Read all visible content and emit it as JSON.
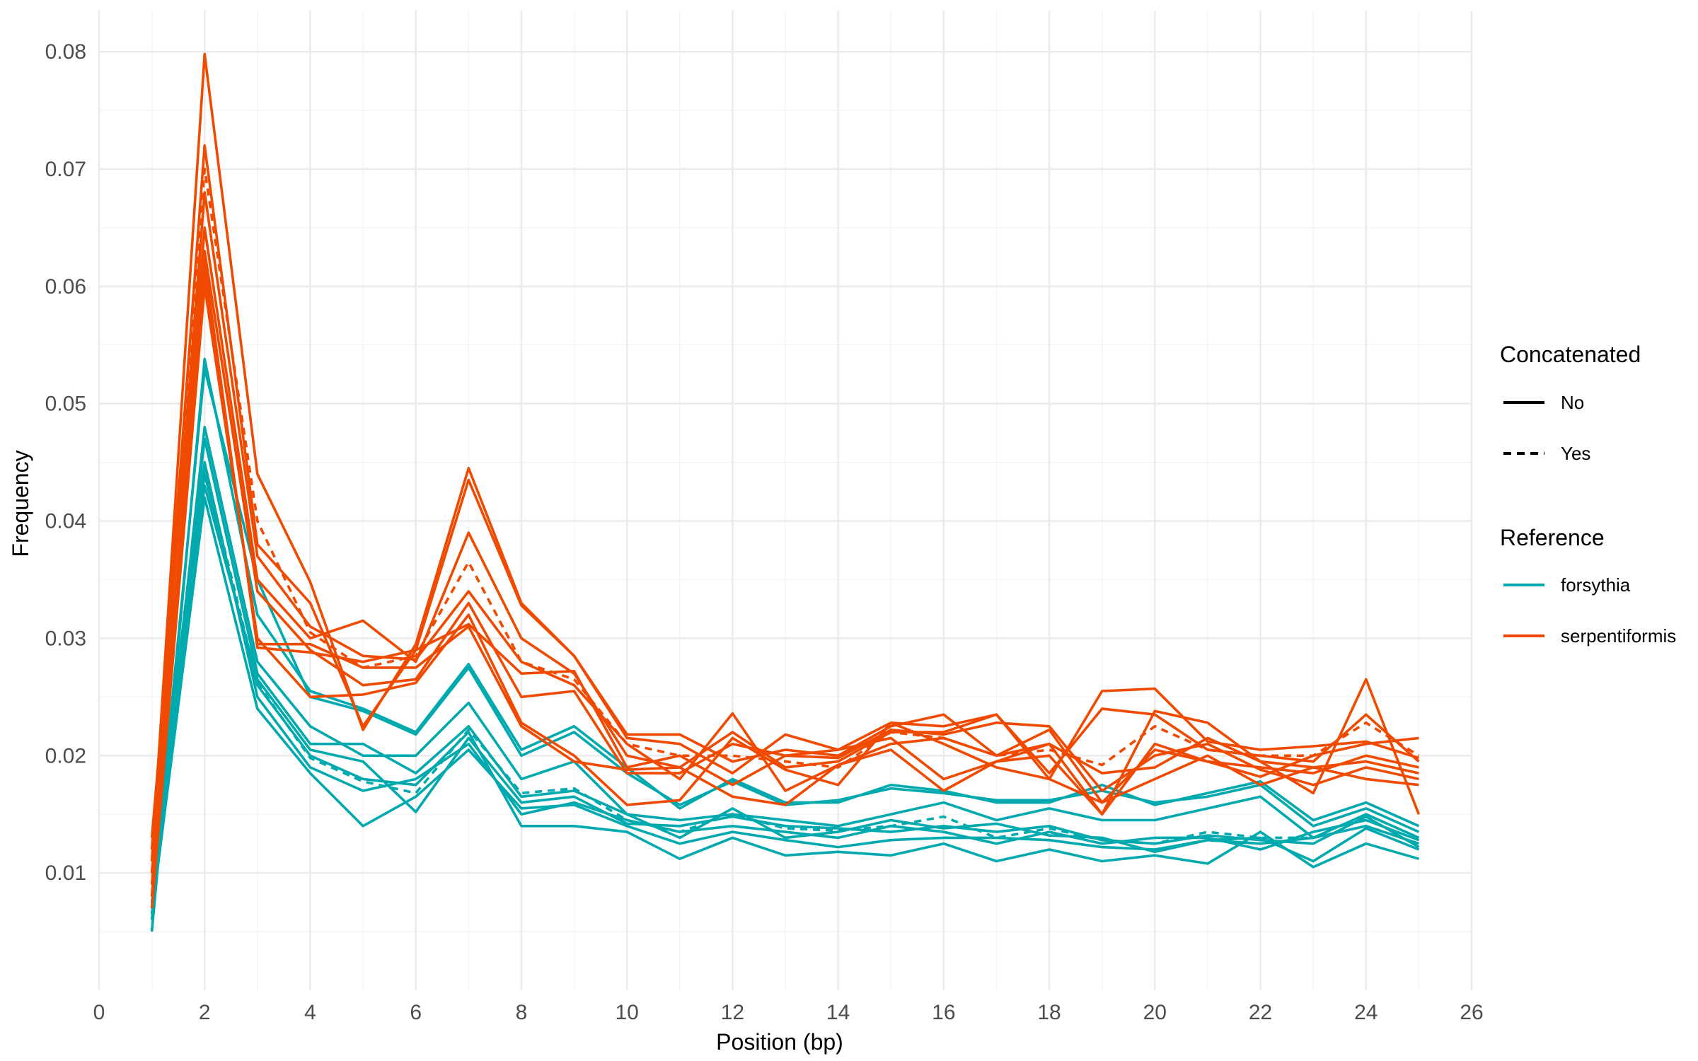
{
  "chart_data": {
    "type": "line",
    "title": "",
    "xlabel": "Position (bp)",
    "ylabel": "Frequency",
    "xlim": [
      0,
      26
    ],
    "ylim": [
      0.0,
      0.0835
    ],
    "x_ticks": [
      0,
      2,
      4,
      6,
      8,
      10,
      12,
      14,
      16,
      18,
      20,
      22,
      24,
      26
    ],
    "y_ticks": [
      0.01,
      0.02,
      0.03,
      0.04,
      0.05,
      0.06,
      0.07,
      0.08
    ],
    "x_tick_labels": [
      "0",
      "2",
      "4",
      "6",
      "8",
      "10",
      "12",
      "14",
      "16",
      "18",
      "20",
      "22",
      "24",
      "26"
    ],
    "y_tick_labels": [
      "0.01",
      "0.02",
      "0.03",
      "0.04",
      "0.05",
      "0.06",
      "0.07",
      "0.08"
    ],
    "grid": true,
    "legend_position": "right",
    "legends": [
      {
        "title": "Concatenated",
        "entries": [
          {
            "label": "No",
            "linetype": "solid",
            "color": "#000000"
          },
          {
            "label": "Yes",
            "linetype": "dashed",
            "color": "#000000"
          }
        ]
      },
      {
        "title": "Reference",
        "entries": [
          {
            "label": "forsythia",
            "linetype": "solid",
            "color": "#00A9AD"
          },
          {
            "label": "serpentiformis",
            "linetype": "solid",
            "color": "#F04A00"
          }
        ]
      }
    ],
    "x": [
      1,
      2,
      3,
      4,
      5,
      6,
      7,
      8,
      9,
      10,
      11,
      12,
      13,
      14,
      15,
      16,
      17,
      18,
      19,
      20,
      21,
      22,
      23,
      24,
      25
    ],
    "series": [
      {
        "reference": "forsythia",
        "concatenated": "No",
        "color": "#00A9AD",
        "values": [
          0.005,
          0.0538,
          0.032,
          0.0255,
          0.024,
          0.022,
          0.0278,
          0.0205,
          0.0225,
          0.019,
          0.0155,
          0.018,
          0.016,
          0.016,
          0.0175,
          0.017,
          0.016,
          0.016,
          0.0175,
          0.0158,
          0.0168,
          0.0178,
          0.0145,
          0.016,
          0.014
        ]
      },
      {
        "reference": "forsythia",
        "concatenated": "No",
        "color": "#00A9AD",
        "values": [
          0.007,
          0.053,
          0.035,
          0.025,
          0.0238,
          0.0218,
          0.0275,
          0.02,
          0.022,
          0.0185,
          0.0158,
          0.0178,
          0.0158,
          0.0162,
          0.0172,
          0.0168,
          0.0162,
          0.0162,
          0.017,
          0.016,
          0.0165,
          0.0175,
          0.014,
          0.0155,
          0.0135
        ]
      },
      {
        "reference": "forsythia",
        "concatenated": "No",
        "color": "#00A9AD",
        "values": [
          0.006,
          0.048,
          0.028,
          0.0225,
          0.02,
          0.02,
          0.0245,
          0.018,
          0.0195,
          0.015,
          0.0145,
          0.015,
          0.0145,
          0.014,
          0.015,
          0.016,
          0.0145,
          0.0155,
          0.0145,
          0.0145,
          0.0155,
          0.0165,
          0.013,
          0.015,
          0.013
        ]
      },
      {
        "reference": "forsythia",
        "concatenated": "No",
        "color": "#00A9AD",
        "values": [
          0.008,
          0.047,
          0.027,
          0.021,
          0.021,
          0.0185,
          0.0225,
          0.0165,
          0.017,
          0.015,
          0.013,
          0.0155,
          0.013,
          0.0135,
          0.0145,
          0.0138,
          0.0142,
          0.0132,
          0.013,
          0.0118,
          0.0128,
          0.0125,
          0.013,
          0.014,
          0.0125
        ]
      },
      {
        "reference": "forsythia",
        "concatenated": "No",
        "color": "#00A9AD",
        "values": [
          0.007,
          0.044,
          0.026,
          0.02,
          0.018,
          0.0175,
          0.022,
          0.014,
          0.014,
          0.0135,
          0.0112,
          0.013,
          0.0115,
          0.0118,
          0.0115,
          0.0125,
          0.011,
          0.012,
          0.011,
          0.0115,
          0.0108,
          0.0135,
          0.0105,
          0.0125,
          0.0112
        ]
      },
      {
        "reference": "forsythia",
        "concatenated": "No",
        "color": "#00A9AD",
        "values": [
          0.009,
          0.045,
          0.025,
          0.019,
          0.017,
          0.018,
          0.021,
          0.015,
          0.016,
          0.0145,
          0.0135,
          0.014,
          0.0135,
          0.013,
          0.014,
          0.0135,
          0.0125,
          0.0135,
          0.0125,
          0.013,
          0.013,
          0.012,
          0.0135,
          0.0145,
          0.0128
        ]
      },
      {
        "reference": "forsythia",
        "concatenated": "No",
        "color": "#00A9AD",
        "values": [
          0.0065,
          0.042,
          0.024,
          0.0185,
          0.014,
          0.0165,
          0.0205,
          0.0155,
          0.0158,
          0.014,
          0.0125,
          0.0135,
          0.0128,
          0.0122,
          0.0128,
          0.013,
          0.013,
          0.0128,
          0.0122,
          0.012,
          0.0128,
          0.013,
          0.011,
          0.0138,
          0.012
        ]
      },
      {
        "reference": "forsythia",
        "concatenated": "No",
        "color": "#00A9AD",
        "values": [
          0.0075,
          0.043,
          0.0265,
          0.0205,
          0.0195,
          0.0152,
          0.0215,
          0.016,
          0.0165,
          0.0142,
          0.014,
          0.0148,
          0.014,
          0.0138,
          0.0135,
          0.014,
          0.0135,
          0.014,
          0.0128,
          0.0125,
          0.0132,
          0.0128,
          0.0125,
          0.0148,
          0.0122
        ]
      },
      {
        "reference": "forsythia",
        "concatenated": "Yes",
        "color": "#00A9AD",
        "values": [
          0.0072,
          0.0445,
          0.0262,
          0.0198,
          0.0178,
          0.0168,
          0.0222,
          0.0168,
          0.0172,
          0.0145,
          0.0135,
          0.015,
          0.0138,
          0.0136,
          0.014,
          0.0148,
          0.013,
          0.0138,
          0.0128,
          0.0125,
          0.0135,
          0.013,
          0.013,
          0.014,
          0.0125
        ]
      },
      {
        "reference": "serpentiformis",
        "concatenated": "No",
        "color": "#F04A00",
        "values": [
          0.011,
          0.0798,
          0.044,
          0.0348,
          0.0222,
          0.0295,
          0.0445,
          0.033,
          0.0285,
          0.0215,
          0.021,
          0.0185,
          0.0218,
          0.0205,
          0.0228,
          0.0225,
          0.0235,
          0.018,
          0.0255,
          0.0257,
          0.0212,
          0.0205,
          0.0208,
          0.0212,
          0.0198
        ]
      },
      {
        "reference": "serpentiformis",
        "concatenated": "No",
        "color": "#F04A00",
        "values": [
          0.012,
          0.072,
          0.038,
          0.033,
          0.0225,
          0.029,
          0.0435,
          0.0328,
          0.0285,
          0.0218,
          0.0218,
          0.0195,
          0.0205,
          0.02,
          0.0225,
          0.0235,
          0.02,
          0.021,
          0.015,
          0.0238,
          0.0228,
          0.0195,
          0.0168,
          0.0265,
          0.015
        ]
      },
      {
        "reference": "serpentiformis",
        "concatenated": "No",
        "color": "#F04A00",
        "values": [
          0.013,
          0.065,
          0.035,
          0.03,
          0.0315,
          0.028,
          0.039,
          0.03,
          0.027,
          0.02,
          0.019,
          0.022,
          0.019,
          0.0195,
          0.022,
          0.022,
          0.0235,
          0.0185,
          0.024,
          0.0235,
          0.0205,
          0.02,
          0.0195,
          0.0235,
          0.0195
        ]
      },
      {
        "reference": "serpentiformis",
        "concatenated": "No",
        "color": "#F04A00",
        "values": [
          0.011,
          0.068,
          0.037,
          0.031,
          0.0285,
          0.0282,
          0.034,
          0.028,
          0.026,
          0.021,
          0.018,
          0.0236,
          0.017,
          0.0192,
          0.021,
          0.0215,
          0.02,
          0.0222,
          0.016,
          0.0205,
          0.0195,
          0.0182,
          0.02,
          0.021,
          0.0215
        ]
      },
      {
        "reference": "serpentiformis",
        "concatenated": "No",
        "color": "#F04A00",
        "values": [
          0.01,
          0.063,
          0.034,
          0.029,
          0.026,
          0.0265,
          0.033,
          0.025,
          0.0255,
          0.0185,
          0.0185,
          0.021,
          0.02,
          0.0205,
          0.0215,
          0.018,
          0.0195,
          0.021,
          0.0185,
          0.019,
          0.0215,
          0.0195,
          0.019,
          0.0195,
          0.0185
        ]
      },
      {
        "reference": "serpentiformis",
        "concatenated": "No",
        "color": "#F04A00",
        "values": [
          0.007,
          0.06,
          0.03,
          0.025,
          0.0252,
          0.0262,
          0.032,
          0.0228,
          0.02,
          0.0158,
          0.0162,
          0.0215,
          0.0188,
          0.0175,
          0.0228,
          0.021,
          0.019,
          0.018,
          0.016,
          0.018,
          0.02,
          0.0175,
          0.019,
          0.018,
          0.0175
        ]
      },
      {
        "reference": "serpentiformis",
        "concatenated": "No",
        "color": "#F04A00",
        "values": [
          0.009,
          0.061,
          0.0295,
          0.0295,
          0.0275,
          0.0275,
          0.031,
          0.0225,
          0.0195,
          0.0188,
          0.019,
          0.0165,
          0.0158,
          0.0192,
          0.0205,
          0.017,
          0.0195,
          0.02,
          0.015,
          0.021,
          0.0195,
          0.019,
          0.0185,
          0.02,
          0.019
        ]
      },
      {
        "reference": "serpentiformis",
        "concatenated": "No",
        "color": "#F04A00",
        "values": [
          0.008,
          0.062,
          0.0292,
          0.0288,
          0.028,
          0.029,
          0.0312,
          0.027,
          0.0272,
          0.019,
          0.02,
          0.0175,
          0.02,
          0.0198,
          0.0222,
          0.0218,
          0.0228,
          0.0225,
          0.017,
          0.02,
          0.021,
          0.0188,
          0.0175,
          0.019,
          0.018
        ]
      },
      {
        "reference": "serpentiformis",
        "concatenated": "Yes",
        "color": "#F04A00",
        "values": [
          0.01,
          0.07,
          0.04,
          0.0305,
          0.0275,
          0.0285,
          0.0365,
          0.028,
          0.0265,
          0.021,
          0.02,
          0.02,
          0.0195,
          0.019,
          0.022,
          0.0215,
          0.02,
          0.0205,
          0.0192,
          0.0225,
          0.0205,
          0.02,
          0.02,
          0.0228,
          0.02
        ]
      }
    ]
  }
}
